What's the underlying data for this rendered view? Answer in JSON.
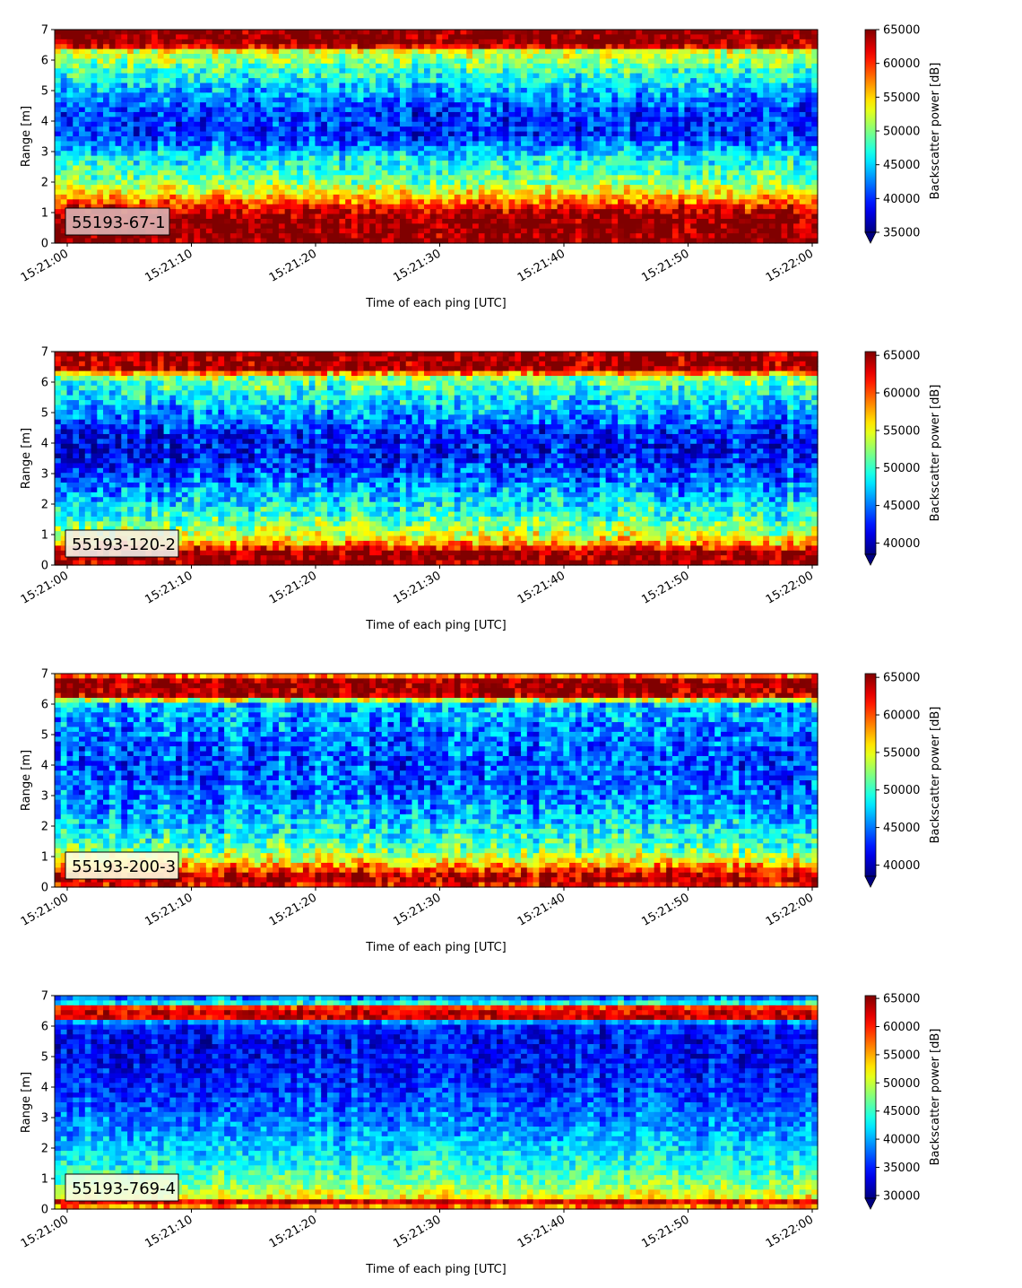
{
  "chart_data": [
    {
      "type": "heatmap",
      "label": "55193-67-1",
      "xlabel": "Time of each ping [UTC]",
      "ylabel": "Range [m]",
      "xticks": [
        "15:21:00",
        "15:21:10",
        "15:21:20",
        "15:21:30",
        "15:21:40",
        "15:21:50",
        "15:22:00"
      ],
      "yticks": [
        0,
        1,
        2,
        3,
        4,
        5,
        6,
        7
      ],
      "ylim": [
        0,
        7
      ],
      "colorbar": {
        "label": "Backscatter power [dB]",
        "min": 35000,
        "max": 65000,
        "ticks": [
          35000,
          40000,
          45000,
          50000,
          55000,
          60000,
          65000
        ],
        "extend": "min"
      },
      "colormap": "jet",
      "profile": [
        {
          "range": 0.05,
          "value": 65000
        },
        {
          "range": 0.3,
          "value": 65000
        },
        {
          "range": 0.8,
          "value": 65000
        },
        {
          "range": 1.1,
          "value": 62000
        },
        {
          "range": 1.5,
          "value": 56000
        },
        {
          "range": 2.0,
          "value": 50000
        },
        {
          "range": 2.8,
          "value": 46000
        },
        {
          "range": 3.5,
          "value": 40000
        },
        {
          "range": 4.2,
          "value": 40000
        },
        {
          "range": 5.0,
          "value": 44000
        },
        {
          "range": 5.8,
          "value": 49000
        },
        {
          "range": 6.3,
          "value": 53000
        },
        {
          "range": 6.5,
          "value": 65000
        },
        {
          "range": 7.0,
          "value": 65000
        }
      ],
      "label_box_color": "#dcb4b4"
    },
    {
      "type": "heatmap",
      "label": "55193-120-2",
      "xlabel": "Time of each ping [UTC]",
      "ylabel": "Range [m]",
      "xticks": [
        "15:21:00",
        "15:21:10",
        "15:21:20",
        "15:21:30",
        "15:21:40",
        "15:21:50",
        "15:22:00"
      ],
      "yticks": [
        0,
        1,
        2,
        3,
        4,
        5,
        6,
        7
      ],
      "ylim": [
        0,
        7
      ],
      "colorbar": {
        "label": "Backscatter power [dB]",
        "min": 38500,
        "max": 65500,
        "ticks": [
          40000,
          45000,
          50000,
          55000,
          60000,
          65000
        ],
        "extend": "min"
      },
      "colormap": "jet",
      "profile": [
        {
          "range": 0.05,
          "value": 65000
        },
        {
          "range": 0.4,
          "value": 65000
        },
        {
          "range": 0.7,
          "value": 58000
        },
        {
          "range": 1.0,
          "value": 54000
        },
        {
          "range": 1.6,
          "value": 50000
        },
        {
          "range": 2.5,
          "value": 46000
        },
        {
          "range": 3.5,
          "value": 42000
        },
        {
          "range": 4.2,
          "value": 42000
        },
        {
          "range": 5.0,
          "value": 46000
        },
        {
          "range": 5.8,
          "value": 50000
        },
        {
          "range": 6.2,
          "value": 53000
        },
        {
          "range": 6.4,
          "value": 65000
        },
        {
          "range": 7.0,
          "value": 65000
        }
      ],
      "label_box_color": "#f2f0ea"
    },
    {
      "type": "heatmap",
      "label": "55193-200-3",
      "xlabel": "Time of each ping [UTC]",
      "ylabel": "Range [m]",
      "xticks": [
        "15:21:00",
        "15:21:10",
        "15:21:20",
        "15:21:30",
        "15:21:40",
        "15:21:50",
        "15:22:00"
      ],
      "yticks": [
        0,
        1,
        2,
        3,
        4,
        5,
        6,
        7
      ],
      "ylim": [
        0,
        7
      ],
      "colorbar": {
        "label": "Backscatter power [dB]",
        "min": 38500,
        "max": 65500,
        "ticks": [
          40000,
          45000,
          50000,
          55000,
          60000,
          65000
        ],
        "extend": "min"
      },
      "colormap": "jet",
      "profile": [
        {
          "range": 0.05,
          "value": 62000
        },
        {
          "range": 0.3,
          "value": 65000
        },
        {
          "range": 0.6,
          "value": 60000
        },
        {
          "range": 0.9,
          "value": 55000
        },
        {
          "range": 1.3,
          "value": 51000
        },
        {
          "range": 2.0,
          "value": 48000
        },
        {
          "range": 3.0,
          "value": 45000
        },
        {
          "range": 4.0,
          "value": 44000
        },
        {
          "range": 5.0,
          "value": 45000
        },
        {
          "range": 6.0,
          "value": 47000
        },
        {
          "range": 6.3,
          "value": 65000
        },
        {
          "range": 6.8,
          "value": 65000
        },
        {
          "range": 7.0,
          "value": 55000
        }
      ],
      "label_box_color": "#fffee0"
    },
    {
      "type": "heatmap",
      "label": "55193-769-4",
      "xlabel": "Time of each ping [UTC]",
      "ylabel": "Range [m]",
      "xticks": [
        "15:21:00",
        "15:21:10",
        "15:21:20",
        "15:21:30",
        "15:21:40",
        "15:21:50",
        "15:22:00"
      ],
      "yticks": [
        0,
        1,
        2,
        3,
        4,
        5,
        6,
        7
      ],
      "ylim": [
        0,
        7
      ],
      "colorbar": {
        "label": "Backscatter power [dB]",
        "min": 29500,
        "max": 65500,
        "ticks": [
          30000,
          35000,
          40000,
          45000,
          50000,
          55000,
          60000,
          65000
        ],
        "extend": "min"
      },
      "colormap": "jet",
      "profile": [
        {
          "range": 0.05,
          "value": 55000
        },
        {
          "range": 0.2,
          "value": 65000
        },
        {
          "range": 0.4,
          "value": 52000
        },
        {
          "range": 0.8,
          "value": 48000
        },
        {
          "range": 1.5,
          "value": 44000
        },
        {
          "range": 2.5,
          "value": 40000
        },
        {
          "range": 3.5,
          "value": 37000
        },
        {
          "range": 4.5,
          "value": 35000
        },
        {
          "range": 5.5,
          "value": 34000
        },
        {
          "range": 6.1,
          "value": 36000
        },
        {
          "range": 6.3,
          "value": 65000
        },
        {
          "range": 6.6,
          "value": 60000
        },
        {
          "range": 6.8,
          "value": 40000
        },
        {
          "range": 7.0,
          "value": 38000
        }
      ],
      "label_box_color": "#f5fde6"
    }
  ]
}
